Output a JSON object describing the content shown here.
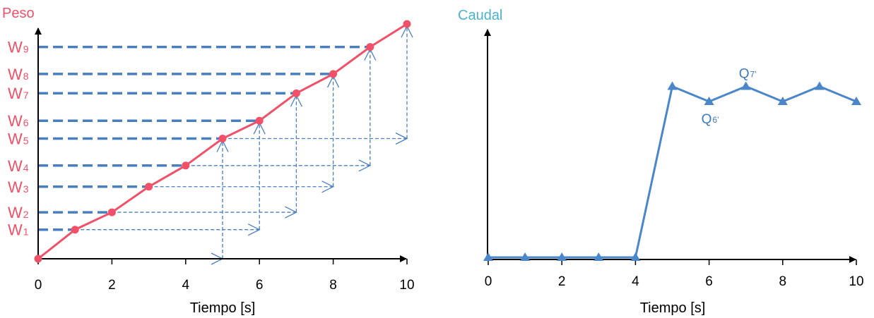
{
  "chart_data": [
    {
      "type": "line",
      "ylabel": "Peso",
      "xlabel": "Tiempo [s]",
      "x": [
        0,
        1,
        2,
        3,
        4,
        5,
        6,
        7,
        8,
        9,
        10
      ],
      "xticks": [
        "0",
        "2",
        "4",
        "6",
        "8",
        "10"
      ],
      "xlim": [
        0,
        10
      ],
      "ylim": [
        0,
        10
      ],
      "series": [
        {
          "values": [
            0,
            1.24,
            1.98,
            3.07,
            3.97,
            5.12,
            5.88,
            7.05,
            7.87,
            9.02,
            10.0
          ]
        }
      ],
      "weight_labels": [
        {
          "main": "W",
          "sub": "1",
          "ref_index": 1
        },
        {
          "main": "W",
          "sub": "2",
          "ref_index": 2
        },
        {
          "main": "W",
          "sub": "3",
          "ref_index": 3
        },
        {
          "main": "W",
          "sub": "4",
          "ref_index": 4
        },
        {
          "main": "W",
          "sub": "5",
          "ref_index": 5
        },
        {
          "main": "W",
          "sub": "6",
          "ref_index": 6
        },
        {
          "main": "W",
          "sub": "7",
          "ref_index": 7
        },
        {
          "main": "W",
          "sub": "8",
          "ref_index": 8
        },
        {
          "main": "W",
          "sub": "9",
          "ref_index": 9
        }
      ],
      "colors": {
        "line": "#f05068",
        "labels": "#f05068",
        "guides": "#4a7fbf",
        "axis": "#000000"
      }
    },
    {
      "type": "line",
      "ylabel": "Caudal",
      "xlabel": "Tiempo [s]",
      "x": [
        0,
        1,
        2,
        3,
        4,
        5,
        6,
        7,
        8,
        9,
        10
      ],
      "xticks": [
        "0",
        "2",
        "4",
        "6",
        "8",
        "10"
      ],
      "xlim": [
        0,
        10
      ],
      "ylim": [
        0,
        10
      ],
      "series": [
        {
          "values": [
            0,
            0,
            0,
            0,
            0,
            7.46,
            6.8,
            7.46,
            6.8,
            7.46,
            6.8
          ]
        }
      ],
      "annotations": [
        {
          "main": "Q",
          "sub": "7’",
          "ref_index": 7,
          "position": "above"
        },
        {
          "main": "Q",
          "sub": "6’",
          "ref_index": 6,
          "position": "below"
        }
      ],
      "colors": {
        "line": "#4a86c8",
        "labels": "#3d7ab8",
        "title": "#4bb3c9",
        "axis": "#000000"
      }
    }
  ]
}
